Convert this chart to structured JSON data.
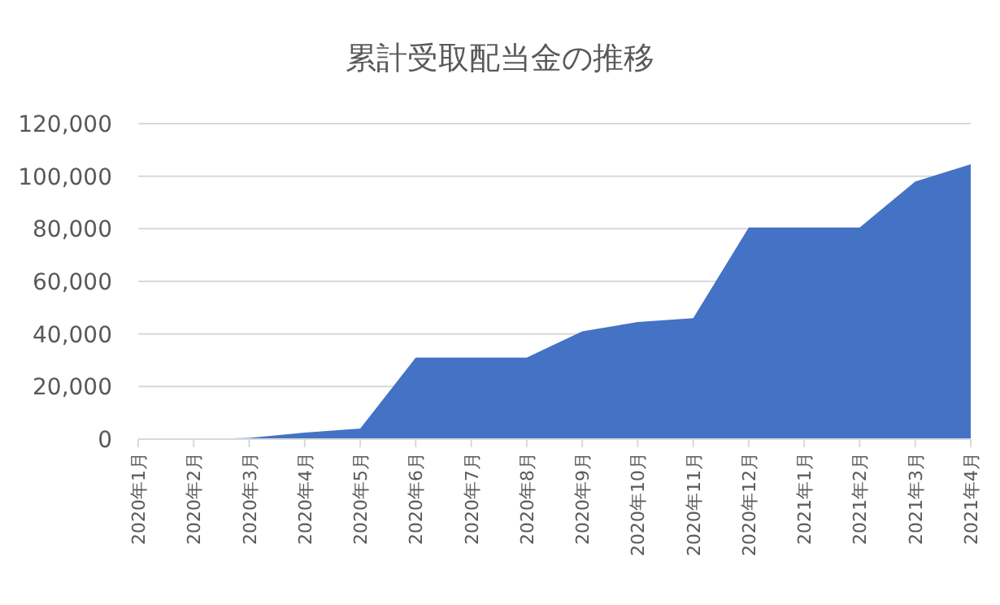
{
  "chart_data": {
    "type": "area",
    "title": "累計受取配当金の推移",
    "categories": [
      "2020年1月",
      "2020年2月",
      "2020年3月",
      "2020年4月",
      "2020年5月",
      "2020年6月",
      "2020年7月",
      "2020年8月",
      "2020年9月",
      "2020年10月",
      "2020年11月",
      "2020年12月",
      "2021年1月",
      "2021年2月",
      "2021年3月",
      "2021年4月"
    ],
    "series": [
      {
        "color": "#4472c4",
        "values": [
          0,
          0,
          500,
          2500,
          4000,
          31000,
          31000,
          31000,
          41000,
          44500,
          46000,
          80500,
          80500,
          80500,
          98000,
          104500
        ]
      }
    ],
    "ylim": [
      0,
      120000
    ],
    "yticks": [
      {
        "value": 0,
        "label": "0"
      },
      {
        "value": 20000,
        "label": "20,000"
      },
      {
        "value": 40000,
        "label": "40,000"
      },
      {
        "value": 60000,
        "label": "60,000"
      },
      {
        "value": 80000,
        "label": "80,000"
      },
      {
        "value": 100000,
        "label": "100,000"
      },
      {
        "value": 120000,
        "label": "120,000"
      }
    ],
    "grid": "y"
  }
}
